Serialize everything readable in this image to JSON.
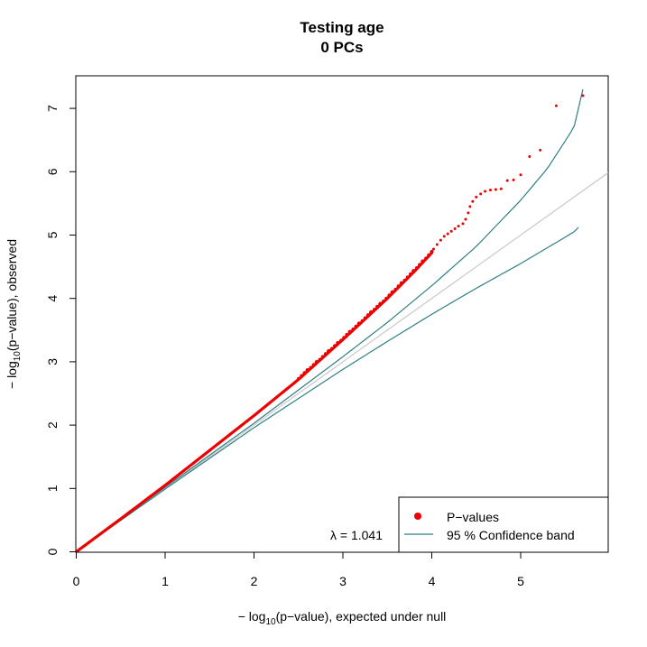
{
  "chart_data": {
    "type": "scatter",
    "title": "Testing age",
    "subtitle": "0 PCs",
    "xlabel": {
      "prefix": "− log",
      "sub": "10",
      "suffix": "(p−value), expected under null"
    },
    "ylabel": {
      "prefix": "− log",
      "sub": "10",
      "suffix": "(p−value), observed"
    },
    "xlim": [
      0,
      6
    ],
    "ylim": [
      0,
      7.35
    ],
    "xticks": [
      "0",
      "1",
      "2",
      "3",
      "4",
      "5"
    ],
    "yticks": [
      "0",
      "1",
      "2",
      "3",
      "4",
      "5",
      "6",
      "7"
    ],
    "grid": false,
    "lambda_label": "λ = 1.041",
    "legend": {
      "placement": "bottom-right",
      "items": [
        {
          "label": "P−values",
          "symbol": "point",
          "color": "#ee0000"
        },
        {
          "label": "95 % Confidence band",
          "symbol": "line",
          "color": "#2e7f86"
        }
      ]
    },
    "colors": {
      "points": "#ee0000",
      "band": "#2e7f86",
      "null_line": "#c8c8c8"
    },
    "series": [
      {
        "name": "P−values",
        "kind": "points",
        "body_curve": {
          "x": [
            0,
            0.5,
            1.0,
            1.5,
            2.0,
            2.5,
            3.0,
            3.5,
            3.8,
            4.0
          ],
          "y": [
            0,
            0.52,
            1.05,
            1.6,
            2.15,
            2.72,
            3.35,
            4.0,
            4.42,
            4.72
          ]
        },
        "tail_points": [
          {
            "x": 4.02,
            "y": 4.78
          },
          {
            "x": 4.06,
            "y": 4.85
          },
          {
            "x": 4.1,
            "y": 4.92
          },
          {
            "x": 4.14,
            "y": 4.98
          },
          {
            "x": 4.18,
            "y": 5.02
          },
          {
            "x": 4.22,
            "y": 5.06
          },
          {
            "x": 4.26,
            "y": 5.1
          },
          {
            "x": 4.3,
            "y": 5.14
          },
          {
            "x": 4.35,
            "y": 5.18
          },
          {
            "x": 4.38,
            "y": 5.25
          },
          {
            "x": 4.41,
            "y": 5.35
          },
          {
            "x": 4.43,
            "y": 5.45
          },
          {
            "x": 4.46,
            "y": 5.53
          },
          {
            "x": 4.5,
            "y": 5.6
          },
          {
            "x": 4.55,
            "y": 5.65
          },
          {
            "x": 4.6,
            "y": 5.69
          },
          {
            "x": 4.66,
            "y": 5.71
          },
          {
            "x": 4.72,
            "y": 5.72
          },
          {
            "x": 4.78,
            "y": 5.73
          },
          {
            "x": 4.85,
            "y": 5.86
          },
          {
            "x": 4.92,
            "y": 5.87
          },
          {
            "x": 5.0,
            "y": 5.95
          },
          {
            "x": 5.1,
            "y": 6.24
          },
          {
            "x": 5.22,
            "y": 6.34
          },
          {
            "x": 5.4,
            "y": 7.04
          },
          {
            "x": 5.7,
            "y": 7.2
          }
        ]
      },
      {
        "name": "95 % Confidence band",
        "kind": "band",
        "upper": {
          "x": [
            0,
            1,
            2,
            3,
            3.5,
            4,
            4.5,
            5,
            5.3,
            5.6,
            5.7
          ],
          "y": [
            0,
            1.02,
            2.03,
            3.08,
            3.62,
            4.2,
            4.82,
            5.55,
            6.05,
            6.7,
            7.3
          ]
        },
        "lower": {
          "x": [
            0,
            1,
            2,
            3,
            3.5,
            4,
            4.5,
            5,
            5.3,
            5.6,
            5.65
          ],
          "y": [
            0,
            0.99,
            1.96,
            2.88,
            3.32,
            3.75,
            4.16,
            4.55,
            4.8,
            5.05,
            5.12
          ]
        }
      },
      {
        "name": "null",
        "kind": "reference",
        "x": [
          0,
          6
        ],
        "y": [
          0,
          6
        ]
      }
    ]
  }
}
